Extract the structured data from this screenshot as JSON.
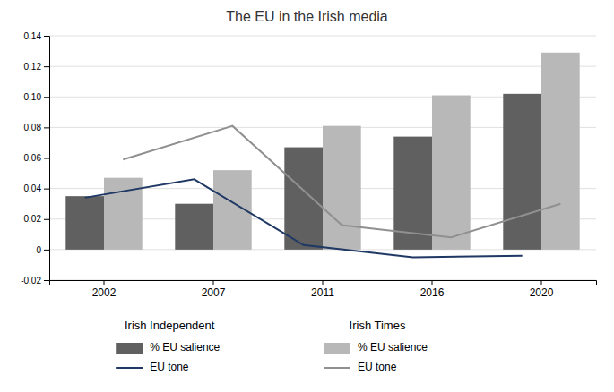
{
  "chart_data": {
    "type": "bar",
    "title": "The EU in the Irish media",
    "categories": [
      "2002",
      "2007",
      "2011",
      "2016",
      "2020"
    ],
    "series": [
      {
        "name": "% EU salience",
        "group": "Irish Independent",
        "type": "bar",
        "color": "#606060",
        "values": [
          0.035,
          0.03,
          0.067,
          0.074,
          0.102
        ]
      },
      {
        "name": "% EU salience",
        "group": "Irish Times",
        "type": "bar",
        "color": "#b8b8b8",
        "values": [
          0.047,
          0.052,
          0.081,
          0.101,
          0.129
        ]
      },
      {
        "name": "EU tone",
        "group": "Irish Independent",
        "type": "line",
        "color": "#1f3864",
        "values": [
          0.034,
          0.046,
          0.003,
          -0.005,
          -0.004
        ]
      },
      {
        "name": "EU tone",
        "group": "Irish Times",
        "type": "line",
        "color": "#909090",
        "values": [
          0.059,
          0.081,
          0.016,
          0.008,
          0.03
        ]
      }
    ],
    "ylim": [
      -0.02,
      0.14
    ],
    "yticks": [
      -0.02,
      0,
      0.02,
      0.04,
      0.06,
      0.08,
      {
        "value": 0.1,
        "label": "0.10"
      },
      0.12,
      0.14
    ],
    "grid": true,
    "legend": "bottom"
  }
}
